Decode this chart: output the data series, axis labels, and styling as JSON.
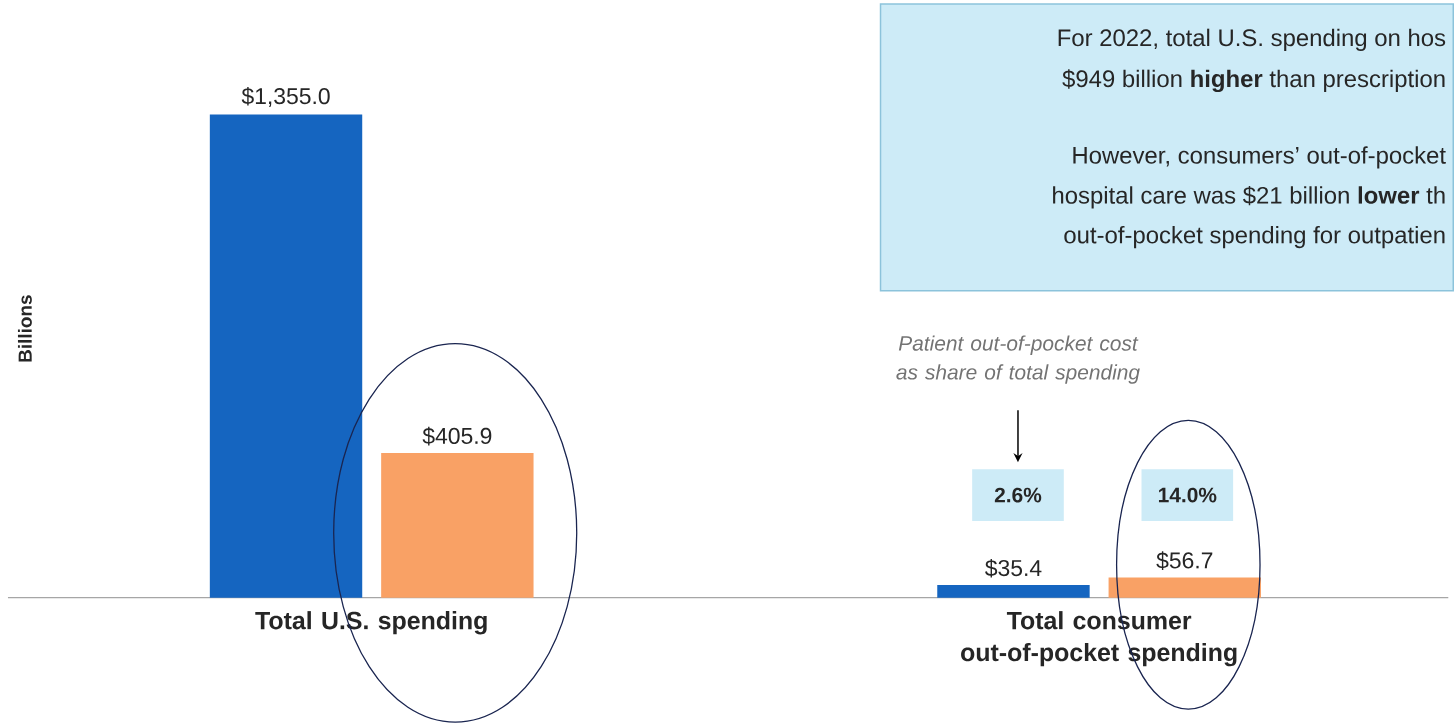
{
  "chart_data": {
    "type": "bar",
    "ylabel": "Billions",
    "categories": [
      "Total U.S. spending",
      "Total consumer out-of-pocket spending"
    ],
    "series": [
      {
        "color": "#1565c0",
        "values": [
          1355.0,
          35.4
        ],
        "value_labels": [
          "$1,355.0",
          "$35.4"
        ]
      },
      {
        "color": "#f9a165",
        "values": [
          405.9,
          56.7
        ],
        "value_labels": [
          "$405.9",
          "$56.7"
        ]
      }
    ],
    "tick_labels": "x",
    "annotations": [
      "For 2022, total U.S. spending on hos",
      "$949 billion **higher** than prescription",
      "However, consumers’ out-of-pocket",
      "hospital care was $21 billion **lower** th",
      "out-of-pocket spending for outpatien",
      "*Patient out-of-pocket cost as share of total spending*",
      "**2.6%**",
      "**14.0%**"
    ]
  }
}
